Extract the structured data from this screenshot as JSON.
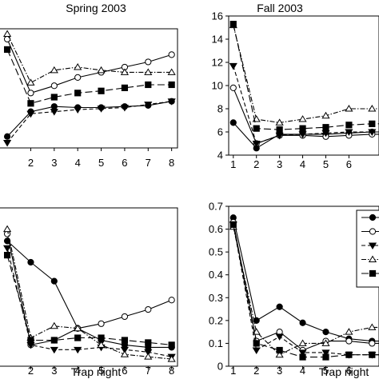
{
  "chart_data": [
    {
      "type": "line",
      "title": "Spring 2003",
      "xlabel": "",
      "ylabel": "",
      "x": [
        1,
        2,
        3,
        4,
        5,
        6,
        7,
        8
      ],
      "x_ticks": [
        "2",
        "3",
        "4",
        "5",
        "6",
        "7",
        "8"
      ],
      "y_ticks": [],
      "series": [
        {
          "marker": "circle-filled",
          "line": "solid",
          "values": [
            3.6,
            6.0,
            6.5,
            6.4,
            6.4,
            6.5,
            6.6,
            7.0
          ]
        },
        {
          "marker": "circle-open",
          "line": "solid",
          "values": [
            13.0,
            7.8,
            8.5,
            9.3,
            9.8,
            10.3,
            10.8,
            11.5
          ]
        },
        {
          "marker": "triangle-down-filled",
          "line": "dashed",
          "values": [
            3.0,
            5.8,
            6.0,
            6.2,
            6.3,
            6.4,
            6.7,
            7.0
          ]
        },
        {
          "marker": "triangle-up-open",
          "line": "dash-dot",
          "values": [
            13.5,
            8.8,
            10.0,
            10.3,
            10.0,
            9.8,
            9.8,
            9.8
          ]
        },
        {
          "marker": "square-filled",
          "line": "long-dash",
          "values": [
            12.0,
            6.8,
            7.4,
            7.8,
            8.0,
            8.3,
            8.6,
            8.6
          ]
        }
      ]
    },
    {
      "type": "line",
      "title": "Fall 2003",
      "xlabel": "",
      "ylabel": "",
      "x": [
        1,
        2,
        3,
        4,
        5,
        6,
        7,
        8
      ],
      "x_ticks": [
        "1",
        "2",
        "3",
        "4",
        "5",
        "6"
      ],
      "y_ticks": [
        "4",
        "6",
        "8",
        "10",
        "12",
        "14",
        "16"
      ],
      "ylim": [
        4,
        16
      ],
      "series": [
        {
          "marker": "circle-filled",
          "line": "solid",
          "values": [
            6.8,
            4.6,
            5.8,
            5.8,
            5.8,
            5.9,
            6.0,
            6.0
          ]
        },
        {
          "marker": "circle-open",
          "line": "solid",
          "values": [
            9.8,
            5.0,
            5.7,
            5.7,
            5.6,
            5.7,
            5.8,
            5.8
          ]
        },
        {
          "marker": "triangle-down-filled",
          "line": "dashed",
          "values": [
            11.7,
            5.0,
            5.7,
            5.8,
            5.9,
            6.0,
            6.0,
            6.0
          ]
        },
        {
          "marker": "triangle-up-open",
          "line": "dash-dot",
          "values": [
            15.2,
            7.1,
            6.8,
            7.1,
            7.4,
            8.0,
            8.0,
            8.0
          ]
        },
        {
          "marker": "square-filled",
          "line": "long-dash",
          "values": [
            15.3,
            6.3,
            6.2,
            6.3,
            6.4,
            6.6,
            6.7,
            6.7
          ]
        }
      ]
    },
    {
      "type": "line",
      "title": "",
      "xlabel": "Trap night",
      "ylabel": "",
      "x": [
        1,
        2,
        3,
        4,
        5,
        6,
        7,
        8
      ],
      "x_ticks": [
        "2",
        "3",
        "4",
        "5",
        "6",
        "7",
        "8"
      ],
      "y_ticks": [],
      "series": [
        {
          "marker": "circle-filled",
          "line": "solid",
          "values": [
            0.56,
            0.47,
            0.39,
            0.19,
            0.14,
            0.12,
            0.11,
            0.11
          ]
        },
        {
          "marker": "circle-open",
          "line": "solid",
          "values": [
            0.59,
            0.12,
            0.14,
            0.19,
            0.21,
            0.24,
            0.27,
            0.31
          ]
        },
        {
          "marker": "triangle-down-filled",
          "line": "dashed",
          "values": [
            0.53,
            0.12,
            0.1,
            0.1,
            0.11,
            0.1,
            0.09,
            0.07
          ]
        },
        {
          "marker": "triangle-up-open",
          "line": "dash-dot",
          "values": [
            0.61,
            0.15,
            0.2,
            0.19,
            0.12,
            0.08,
            0.07,
            0.06
          ]
        },
        {
          "marker": "square-filled",
          "line": "long-dash",
          "values": [
            0.5,
            0.14,
            0.14,
            0.15,
            0.15,
            0.14,
            0.13,
            0.12
          ]
        }
      ]
    },
    {
      "type": "line",
      "title": "",
      "xlabel": "Trap night",
      "ylabel": "",
      "x": [
        1,
        2,
        3,
        4,
        5,
        6,
        7,
        8
      ],
      "x_ticks": [
        "1",
        "2",
        "3",
        "4",
        "5",
        "6"
      ],
      "y_ticks": [
        "0",
        "0.1",
        "0.2",
        "0.3",
        "0.4",
        "0.5",
        "0.6",
        "0.7"
      ],
      "ylim": [
        0,
        0.7
      ],
      "series": [
        {
          "marker": "circle-filled",
          "line": "solid",
          "values": [
            0.65,
            0.2,
            0.26,
            0.19,
            0.15,
            0.12,
            0.11,
            0.11
          ]
        },
        {
          "marker": "circle-open",
          "line": "solid",
          "values": [
            0.63,
            0.11,
            0.15,
            0.07,
            0.11,
            0.11,
            0.1,
            0.1
          ]
        },
        {
          "marker": "triangle-down-filled",
          "line": "dashed",
          "values": [
            0.62,
            0.07,
            0.13,
            0.06,
            0.06,
            0.05,
            0.05,
            0.05
          ]
        },
        {
          "marker": "triangle-up-open",
          "line": "dash-dot",
          "values": [
            0.61,
            0.15,
            0.05,
            0.1,
            0.1,
            0.15,
            0.17,
            0.17
          ]
        },
        {
          "marker": "square-filled",
          "line": "long-dash",
          "values": [
            0.62,
            0.1,
            0.07,
            0.04,
            0.04,
            0.05,
            0.05,
            0.05
          ]
        }
      ],
      "legend": {
        "placement": "right",
        "entries": [
          "",
          "",
          "",
          "",
          ""
        ]
      }
    }
  ]
}
